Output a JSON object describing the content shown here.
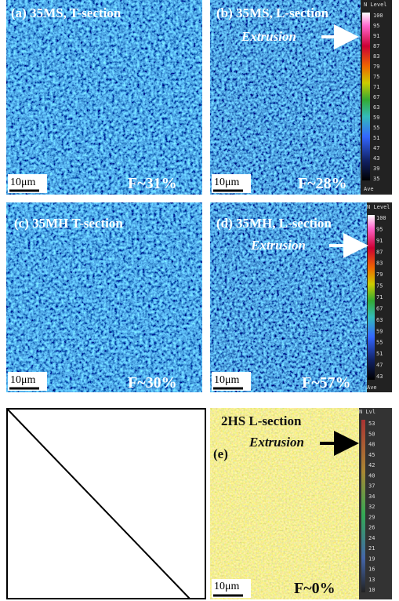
{
  "panels": [
    {
      "label": "(a) 35MS, T-section",
      "scale_bar": "10μm",
      "fraction": "F~31%"
    },
    {
      "label": "(b) 35MS, L-section",
      "annotation": "Extrusion",
      "scale_bar": "10μm",
      "fraction": "F~28%",
      "colorbar": {
        "header": "N Level",
        "ticks": [
          "100",
          "95",
          "91",
          "87",
          "83",
          "79",
          "75",
          "71",
          "67",
          "63",
          "59",
          "55",
          "51",
          "47",
          "43",
          "39",
          "35"
        ],
        "footer": "Ave"
      }
    },
    {
      "label": "(c) 35MH T-section",
      "scale_bar": "10μm",
      "fraction": "F~30%"
    },
    {
      "label": "(d) 35MH, L-section",
      "annotation": "Extrusion",
      "scale_bar": "10μm",
      "fraction": "F~57%",
      "colorbar": {
        "header": "N Level",
        "ticks": [
          "100",
          "95",
          "91",
          "87",
          "83",
          "79",
          "75",
          "71",
          "67",
          "63",
          "59",
          "55",
          "51",
          "47",
          "43"
        ],
        "footer": "Ave"
      }
    },
    {
      "label": "2HS L-section",
      "sublabel": "(e)",
      "annotation": "Extrusion",
      "scale_bar": "10μm",
      "fraction": "F~0%",
      "colorbar": {
        "header": "N Lvl",
        "ticks": [
          "53",
          "50",
          "48",
          "45",
          "42",
          "40",
          "37",
          "34",
          "32",
          "29",
          "26",
          "24",
          "21",
          "19",
          "16",
          "13",
          "10"
        ]
      }
    }
  ]
}
